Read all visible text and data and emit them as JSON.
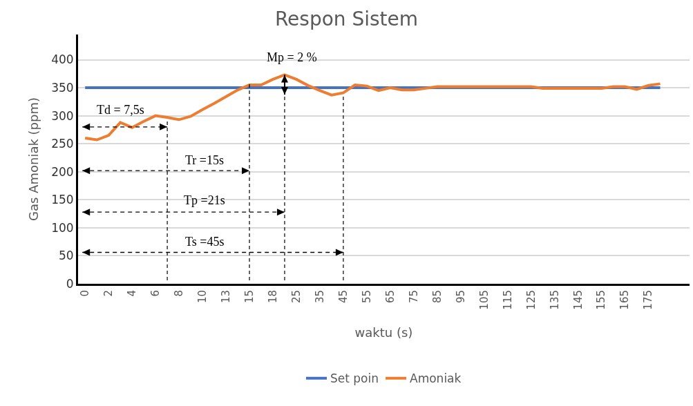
{
  "chart_data": {
    "type": "line",
    "title": "Respon Sistem",
    "xlabel": "waktu (s)",
    "ylabel": "Gas Amoniak (ppm)",
    "categories": [
      "0",
      null,
      "2",
      null,
      "4",
      null,
      "6",
      null,
      "8",
      null,
      "10",
      null,
      "13",
      null,
      "15",
      null,
      "18",
      null,
      "25",
      null,
      "35",
      null,
      "45",
      null,
      "55",
      null,
      "65",
      null,
      "75",
      null,
      "85",
      null,
      "95",
      null,
      "105",
      null,
      "115",
      null,
      "125",
      null,
      "135",
      null,
      "145",
      null,
      "155",
      null,
      "165",
      null,
      "175",
      null
    ],
    "series": [
      {
        "name": "Set poin",
        "color": "#4472c4",
        "values": [
          350,
          350,
          350,
          350,
          350,
          350,
          350,
          350,
          350,
          350,
          350,
          350,
          350,
          350,
          350,
          350,
          350,
          350,
          350,
          350,
          350,
          350,
          350,
          350,
          350,
          350,
          350,
          350,
          350,
          350,
          350,
          350,
          350,
          350,
          350,
          350,
          350,
          350,
          350,
          350,
          350,
          350,
          350,
          350,
          350,
          350,
          350,
          350,
          350,
          350
        ]
      },
      {
        "name": "Amoniak",
        "color": "#ed7d31",
        "values": [
          260,
          257,
          265,
          288,
          279,
          290,
          300,
          297,
          293,
          299,
          311,
          322,
          334,
          346,
          355,
          355,
          365,
          373,
          365,
          354,
          345,
          337,
          341,
          355,
          353,
          345,
          350,
          346,
          346,
          349,
          352,
          352,
          352,
          352,
          352,
          352,
          352,
          352,
          352,
          349,
          349,
          349,
          349,
          349,
          349,
          352,
          352,
          347,
          354,
          357
        ]
      }
    ],
    "ylim": [
      0,
      445
    ],
    "yticks": [
      0,
      50,
      100,
      150,
      200,
      250,
      300,
      350,
      400
    ],
    "grid": "y",
    "legend": "bottom",
    "marker": "none",
    "line_style": "solid",
    "annotations": [
      "Td = 7,5s",
      "Tr =15s",
      "Tp =21s",
      "Ts =45s",
      "Mp = 2 %"
    ]
  }
}
